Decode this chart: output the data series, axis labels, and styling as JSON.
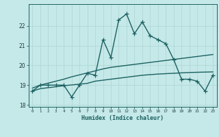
{
  "xlabel": "Humidex (Indice chaleur)",
  "x": [
    0,
    1,
    2,
    3,
    4,
    5,
    6,
    7,
    8,
    9,
    10,
    11,
    12,
    13,
    14,
    15,
    16,
    17,
    18,
    19,
    20,
    21,
    22,
    23
  ],
  "y_main": [
    18.7,
    19.0,
    19.0,
    19.0,
    19.0,
    18.4,
    19.0,
    19.6,
    19.5,
    21.3,
    20.4,
    22.3,
    22.6,
    21.6,
    22.2,
    21.5,
    21.3,
    21.1,
    20.3,
    19.3,
    19.3,
    19.2,
    18.7,
    19.5
  ],
  "y_avg": [
    18.7,
    18.82,
    18.87,
    18.92,
    18.97,
    19.01,
    19.05,
    19.09,
    19.2,
    19.25,
    19.3,
    19.35,
    19.4,
    19.45,
    19.5,
    19.53,
    19.56,
    19.58,
    19.6,
    19.62,
    19.64,
    19.65,
    19.66,
    19.67
  ],
  "y_trend": [
    18.85,
    19.0,
    19.1,
    19.2,
    19.3,
    19.42,
    19.52,
    19.62,
    19.72,
    19.82,
    19.9,
    19.95,
    20.0,
    20.05,
    20.1,
    20.15,
    20.2,
    20.25,
    20.3,
    20.35,
    20.4,
    20.45,
    20.5,
    20.55
  ],
  "ylim": [
    17.9,
    23.1
  ],
  "yticks": [
    18,
    19,
    20,
    21,
    22
  ],
  "xlim": [
    -0.5,
    23.5
  ],
  "bg_color": "#c5e8e8",
  "grid_color": "#b0d8d8",
  "line_color": "#1a6060",
  "line_width": 1.0,
  "marker_size": 4
}
